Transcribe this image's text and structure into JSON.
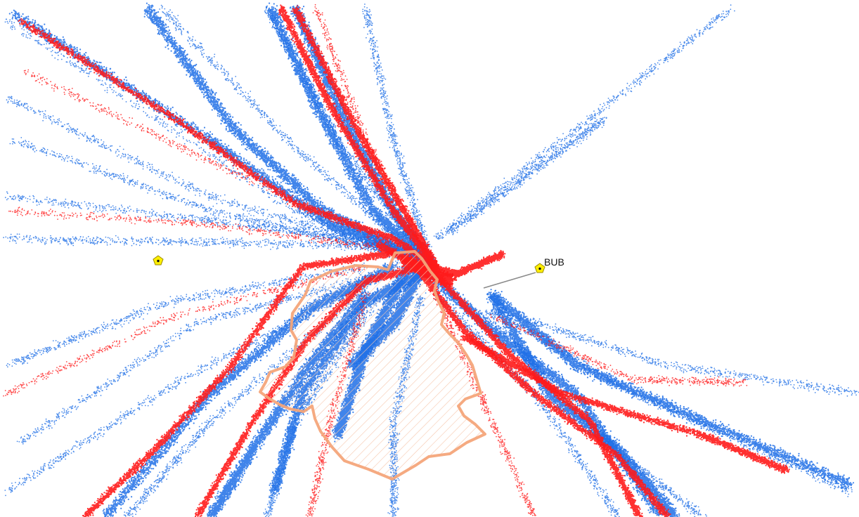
{
  "map": {
    "labels": {
      "bub": "BUB"
    },
    "colors": {
      "background": "#ffffff",
      "track_blue": "#1f6fe6",
      "track_red": "#ff1a1a",
      "zone_outline": "#f4a57a",
      "zone_hatch": "#f6c7ad",
      "marker_fill": "#ffef00",
      "marker_stroke": "#9a8a00",
      "leader_line": "#8a8a8a"
    },
    "icons": {
      "marker": "pentagon-marker-icon"
    },
    "layers": [
      {
        "name": "blue-tracks",
        "kind": "point-trails"
      },
      {
        "name": "red-tracks",
        "kind": "point-trails"
      },
      {
        "name": "zone",
        "kind": "hatched-polygon"
      },
      {
        "name": "markers",
        "kind": "points"
      }
    ]
  }
}
